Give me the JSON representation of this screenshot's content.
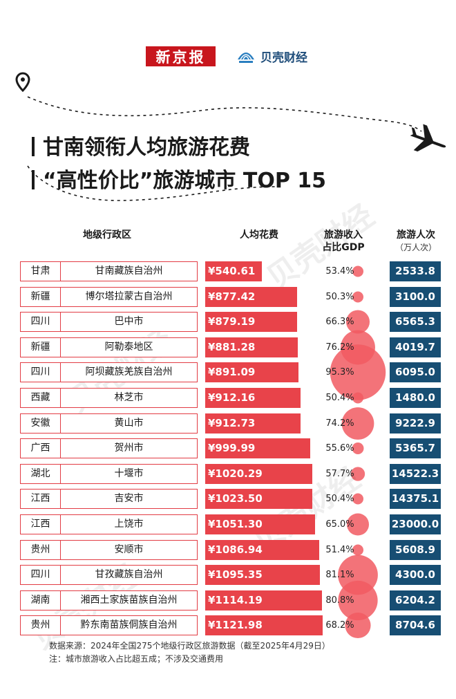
{
  "brand": {
    "newspaper": "新京报",
    "partner": "贝壳财经",
    "partner_icon": "shell-logo-icon",
    "colors": {
      "newspaper_red": "#c8161d",
      "partner_blue": "#1f4d7a"
    }
  },
  "title": {
    "line1": "甘南领衔人均旅游花费",
    "line2": "“高性价比”旅游城市 TOP 15"
  },
  "headers": {
    "region": "地级行政区",
    "spend": "人均花费",
    "gdp_line1": "旅游收入",
    "gdp_line2": "占比GDP",
    "visitors": "旅游人次",
    "visitors_unit": "（万人次）"
  },
  "colors": {
    "spend_bar": "#e8434a",
    "bubble": "#f15a62",
    "visitors_box": "#174e73",
    "row_border": "#e23b43"
  },
  "watermark": "贝壳财经",
  "chart_data": {
    "type": "table",
    "columns": [
      "地级行政区",
      "人均花费",
      "旅游收入占比GDP",
      "旅游人次（万人次）"
    ],
    "rows": [
      {
        "province": "甘肃",
        "city": "甘南藏族自治州",
        "spend": 540.61,
        "spend_label": "¥540.61",
        "gdp_share": 53.4,
        "gdp_label": "53.4%",
        "visitors": 2533.8,
        "visitors_label": "2533.8"
      },
      {
        "province": "新疆",
        "city": "博尔塔拉蒙古自治州",
        "spend": 877.42,
        "spend_label": "¥877.42",
        "gdp_share": 50.3,
        "gdp_label": "50.3%",
        "visitors": 3100.0,
        "visitors_label": "3100.0"
      },
      {
        "province": "四川",
        "city": "巴中市",
        "spend": 879.19,
        "spend_label": "¥879.19",
        "gdp_share": 66.3,
        "gdp_label": "66.3%",
        "visitors": 6565.3,
        "visitors_label": "6565.3"
      },
      {
        "province": "新疆",
        "city": "阿勒泰地区",
        "spend": 881.28,
        "spend_label": "¥881.28",
        "gdp_share": 76.2,
        "gdp_label": "76.2%",
        "visitors": 4019.7,
        "visitors_label": "4019.7"
      },
      {
        "province": "四川",
        "city": "阿坝藏族羌族自治州",
        "spend": 891.09,
        "spend_label": "¥891.09",
        "gdp_share": 95.3,
        "gdp_label": "95.3%",
        "visitors": 6095.0,
        "visitors_label": "6095.0"
      },
      {
        "province": "西藏",
        "city": "林芝市",
        "spend": 912.16,
        "spend_label": "¥912.16",
        "gdp_share": 50.4,
        "gdp_label": "50.4%",
        "visitors": 1480.0,
        "visitors_label": "1480.0"
      },
      {
        "province": "安徽",
        "city": "黄山市",
        "spend": 912.73,
        "spend_label": "¥912.73",
        "gdp_share": 74.2,
        "gdp_label": "74.2%",
        "visitors": 9222.9,
        "visitors_label": "9222.9"
      },
      {
        "province": "广西",
        "city": "贺州市",
        "spend": 999.99,
        "spend_label": "¥999.99",
        "gdp_share": 55.6,
        "gdp_label": "55.6%",
        "visitors": 5365.7,
        "visitors_label": "5365.7"
      },
      {
        "province": "湖北",
        "city": "十堰市",
        "spend": 1020.29,
        "spend_label": "¥1020.29",
        "gdp_share": 57.7,
        "gdp_label": "57.7%",
        "visitors": 14522.3,
        "visitors_label": "14522.3"
      },
      {
        "province": "江西",
        "city": "吉安市",
        "spend": 1023.5,
        "spend_label": "¥1023.50",
        "gdp_share": 50.4,
        "gdp_label": "50.4%",
        "visitors": 14375.1,
        "visitors_label": "14375.1"
      },
      {
        "province": "江西",
        "city": "上饶市",
        "spend": 1051.3,
        "spend_label": "¥1051.30",
        "gdp_share": 65.0,
        "gdp_label": "65.0%",
        "visitors": 23000.0,
        "visitors_label": "23000.0"
      },
      {
        "province": "贵州",
        "city": "安顺市",
        "spend": 1086.94,
        "spend_label": "¥1086.94",
        "gdp_share": 51.4,
        "gdp_label": "51.4%",
        "visitors": 5608.9,
        "visitors_label": "5608.9"
      },
      {
        "province": "四川",
        "city": "甘孜藏族自治州",
        "spend": 1095.35,
        "spend_label": "¥1095.35",
        "gdp_share": 81.1,
        "gdp_label": "81.1%",
        "visitors": 4300.0,
        "visitors_label": "4300.0"
      },
      {
        "province": "湖南",
        "city": "湘西土家族苗族自治州",
        "spend": 1114.19,
        "spend_label": "¥1114.19",
        "gdp_share": 80.8,
        "gdp_label": "80.8%",
        "visitors": 6204.2,
        "visitors_label": "6204.2"
      },
      {
        "province": "贵州",
        "city": "黔东南苗族侗族自治州",
        "spend": 1121.98,
        "spend_label": "¥1121.98",
        "gdp_share": 68.2,
        "gdp_label": "68.2%",
        "visitors": 8704.6,
        "visitors_label": "8704.6"
      }
    ]
  },
  "footer": {
    "source": "数据来源：2024年全国275个地级行政区旅游数据（截至2025年4月29日）",
    "note": "注：城市旅游收入占比超五成；不涉及交通费用"
  }
}
